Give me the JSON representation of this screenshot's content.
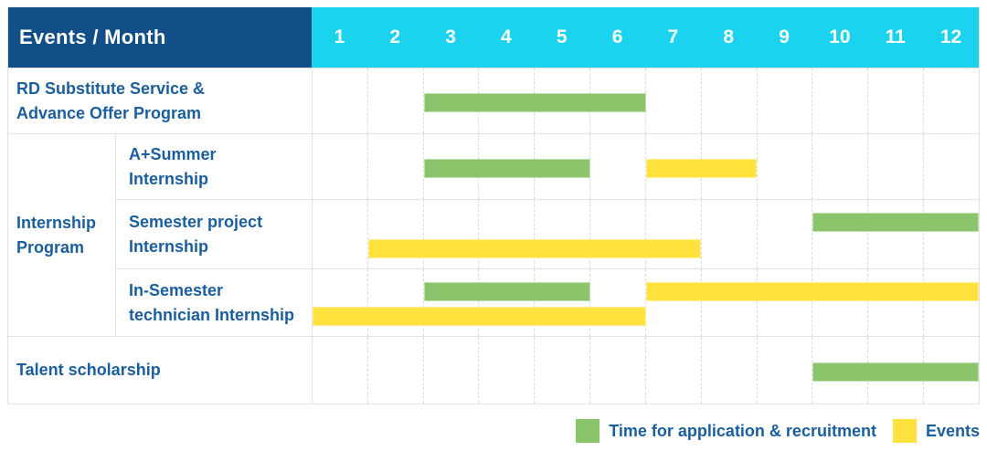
{
  "header": {
    "label": "Events / Month"
  },
  "group_column": {
    "lines": [
      "Internship",
      "Program"
    ]
  },
  "colors": {
    "header_bg": "#124F88",
    "months_bg": "#1BD2EF",
    "bar_green": "#8BC56B",
    "bar_yellow": "#FFE23D",
    "label_text": "#1A5E9E",
    "grid_line": "#E2E2E2"
  },
  "chart_data": {
    "type": "table",
    "title": "Events / Month",
    "x_axis": {
      "label": "Month",
      "ticks": [
        "1",
        "2",
        "3",
        "4",
        "5",
        "6",
        "7",
        "8",
        "9",
        "10",
        "11",
        "12"
      ],
      "range": [
        1,
        12
      ]
    },
    "legend_position": "bottom-right",
    "grid": "dashed-vertical-month-lines",
    "legend": [
      {
        "name": "Time for application & recruitment",
        "color": "#8BC56B"
      },
      {
        "name": "Events",
        "color": "#FFE23D"
      }
    ],
    "rows": [
      {
        "category": "RD Substitute Service & Advance Offer Program",
        "label_lines": [
          "RD Substitute Service &",
          "Advance Offer Program"
        ],
        "group": "",
        "bars": [
          {
            "series": "Time for application & recruitment",
            "color": "green",
            "start_month": 3,
            "end_month": 6,
            "lane": "center"
          }
        ]
      },
      {
        "category": "A+Summer Internship",
        "label_lines": [
          "A+Summer",
          "Internship"
        ],
        "group": "Internship Program",
        "bars": [
          {
            "series": "Time for application & recruitment",
            "color": "green",
            "start_month": 3,
            "end_month": 5,
            "lane": "center"
          },
          {
            "series": "Events",
            "color": "yellow",
            "start_month": 7,
            "end_month": 8,
            "lane": "center"
          }
        ]
      },
      {
        "category": "Semester project Internship",
        "label_lines": [
          "Semester project",
          "Internship"
        ],
        "group": "Internship Program",
        "bars": [
          {
            "series": "Time for application & recruitment",
            "color": "green",
            "start_month": 10,
            "end_month": 12,
            "lane": "top"
          },
          {
            "series": "Events",
            "color": "yellow",
            "start_month": 2,
            "end_month": 7,
            "lane": "bottom"
          }
        ]
      },
      {
        "category": "In-Semester technician Internship",
        "label_lines": [
          "In-Semester",
          "technician Internship"
        ],
        "group": "Internship Program",
        "bars": [
          {
            "series": "Time for application & recruitment",
            "color": "green",
            "start_month": 3,
            "end_month": 5,
            "lane": "top"
          },
          {
            "series": "Events",
            "color": "yellow",
            "start_month": 7,
            "end_month": 12,
            "lane": "top"
          },
          {
            "series": "Events",
            "color": "yellow",
            "start_month": 1,
            "end_month": 6,
            "lane": "bottom"
          }
        ]
      },
      {
        "category": "Talent scholarship",
        "label_lines": [
          "Talent scholarship"
        ],
        "group": "",
        "bars": [
          {
            "series": "Time for application & recruitment",
            "color": "green",
            "start_month": 10,
            "end_month": 12,
            "lane": "center"
          }
        ]
      }
    ]
  }
}
